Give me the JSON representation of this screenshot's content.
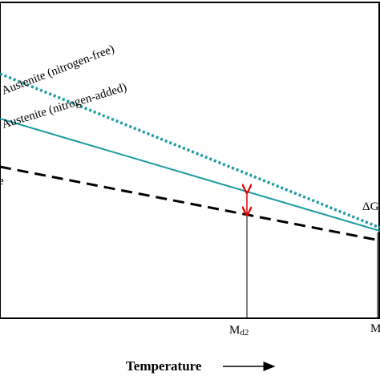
{
  "labels": {
    "austenite_free": "Austenite (nitrogen-free)",
    "austenite_added": "Austenite (nitrogen-added)",
    "left_cut": "e",
    "delta_cut": "ΔG",
    "md2": {
      "main": "M",
      "sub": "d2"
    },
    "right_cut": "M"
  },
  "x_axis": {
    "title": "Temperature"
  }
}
